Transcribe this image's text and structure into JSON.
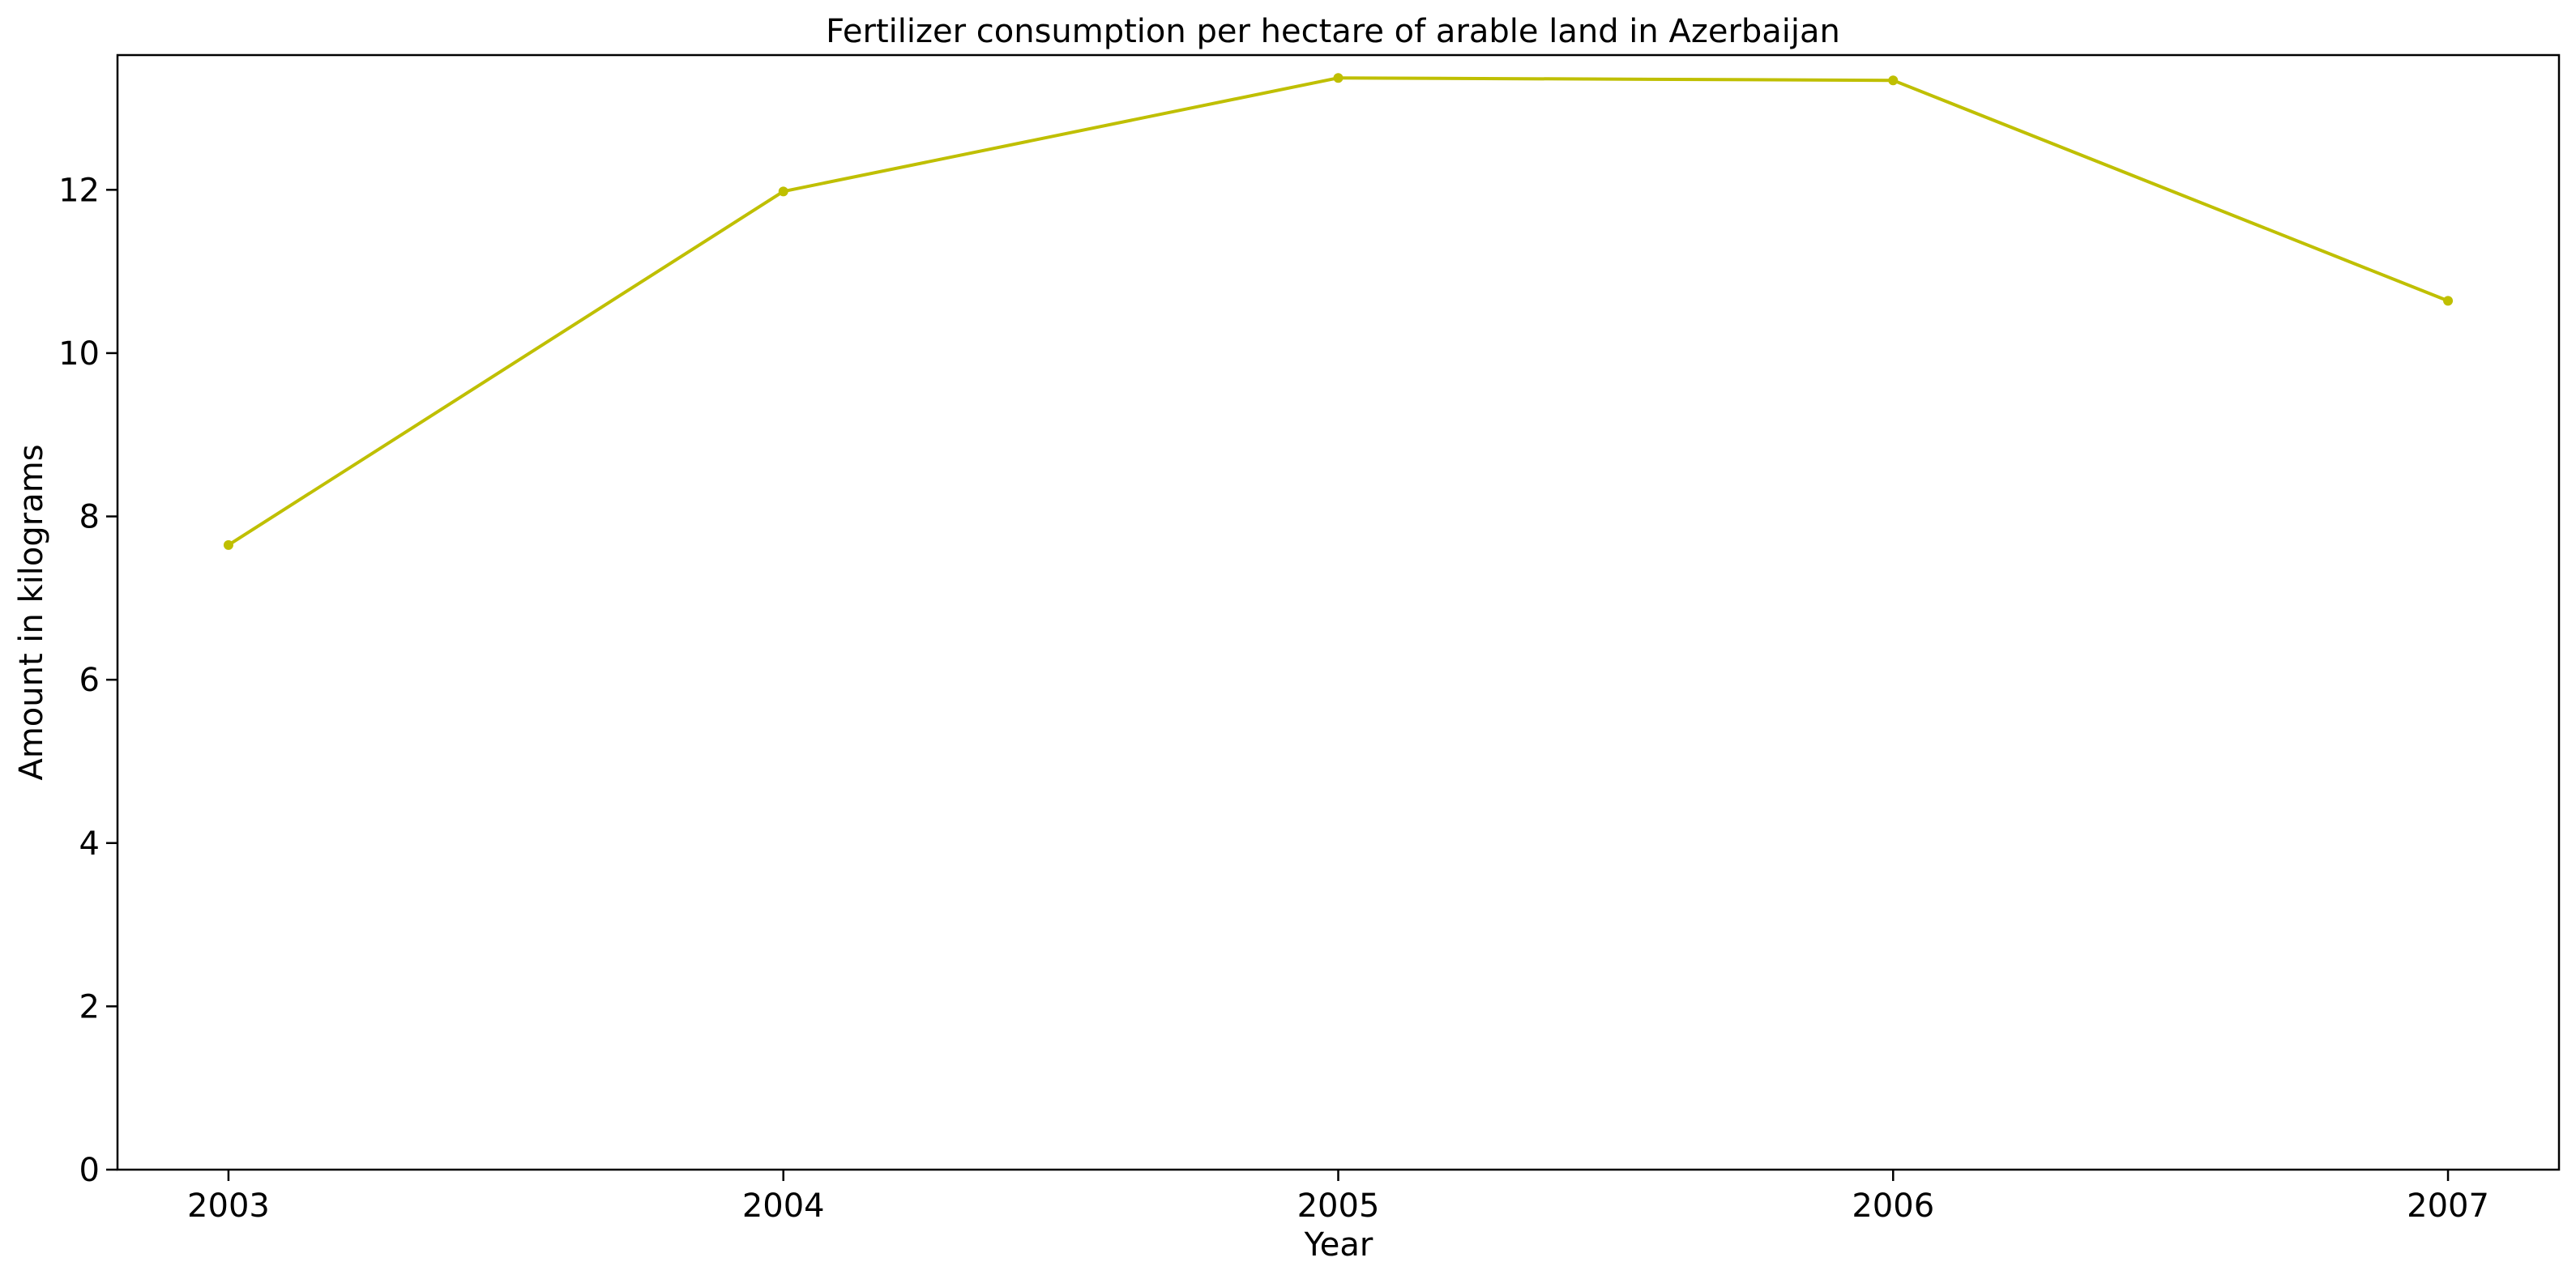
{
  "chart_data": {
    "type": "line",
    "title": "Fertilizer consumption per hectare of arable land in Azerbaijan",
    "xlabel": "Year",
    "ylabel": "Amount in kilograms",
    "x": [
      2003,
      2004,
      2005,
      2006,
      2007
    ],
    "x_tick_labels": [
      "2003",
      "2004",
      "2005",
      "2006",
      "2007"
    ],
    "y_ticks": [
      0,
      2,
      4,
      6,
      8,
      10,
      12
    ],
    "y_tick_labels": [
      "0",
      "2",
      "4",
      "6",
      "8",
      "10",
      "12"
    ],
    "xlim": [
      2002.8,
      2007.2
    ],
    "ylim": [
      0,
      13.65
    ],
    "grid": false,
    "legend": "none",
    "series": [
      {
        "values": [
          7.65,
          11.98,
          13.37,
          13.34,
          10.64
        ],
        "color": "#bfbf00",
        "marker": "dot"
      }
    ]
  }
}
